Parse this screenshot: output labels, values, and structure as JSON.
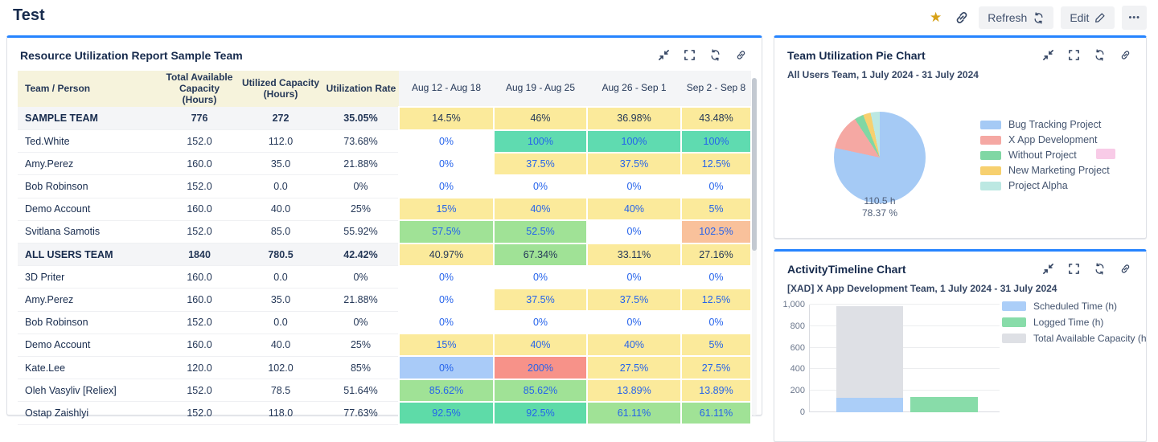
{
  "page": {
    "title": "Test"
  },
  "icons": {
    "star": "★",
    "more": "•••"
  },
  "toolbar": {
    "refresh_label": "Refresh",
    "edit_label": "Edit"
  },
  "colors": {
    "accent_blue_top_border": "#2684FF",
    "link_text": "#2563EB",
    "star_gold": "#D7A117",
    "cell": {
      "yellow": "#FBEA9B",
      "teal": "#5FDBB0",
      "teal2": "#5EDBA8",
      "green": "#A0E296",
      "orange": "#F9C19B",
      "red": "#F79289",
      "blue": "#A9CBF8"
    }
  },
  "left_panel": {
    "title": "Resource Utilization Report Sample Team",
    "table": {
      "columns": [
        "Team / Person",
        "Total Available Capacity (Hours)",
        "Utilized Capacity (Hours)",
        "Utilization Rate",
        "Aug 12 - Aug 18",
        "Aug 19 - Aug 25",
        "Aug 26 - Sep 1",
        "Sep 2 - Sep 8"
      ],
      "rows": [
        {
          "name": "SAMPLE TEAM",
          "group": true,
          "total": "776",
          "utilized": "272",
          "rate": "35.05%",
          "weeks": [
            {
              "v": "14.5%",
              "c": "yellow"
            },
            {
              "v": "46%",
              "c": "yellow"
            },
            {
              "v": "36.98%",
              "c": "yellow"
            },
            {
              "v": "43.48%",
              "c": "yellow"
            }
          ]
        },
        {
          "name": "Ted.White",
          "total": "152.0",
          "utilized": "112.0",
          "rate": "73.68%",
          "weeks": [
            {
              "v": "0%"
            },
            {
              "v": "100%",
              "c": "teal"
            },
            {
              "v": "100%",
              "c": "teal"
            },
            {
              "v": "100%",
              "c": "teal"
            }
          ]
        },
        {
          "name": "Amy.Perez",
          "total": "160.0",
          "utilized": "35.0",
          "rate": "21.88%",
          "weeks": [
            {
              "v": "0%"
            },
            {
              "v": "37.5%",
              "c": "yellow"
            },
            {
              "v": "37.5%",
              "c": "yellow"
            },
            {
              "v": "12.5%",
              "c": "yellow"
            }
          ]
        },
        {
          "name": "Bob Robinson",
          "total": "152.0",
          "utilized": "0.0",
          "rate": "0%",
          "weeks": [
            {
              "v": "0%"
            },
            {
              "v": "0%"
            },
            {
              "v": "0%"
            },
            {
              "v": "0%"
            }
          ]
        },
        {
          "name": "Demo Account",
          "total": "160.0",
          "utilized": "40.0",
          "rate": "25%",
          "weeks": [
            {
              "v": "15%",
              "c": "yellow"
            },
            {
              "v": "40%",
              "c": "yellow"
            },
            {
              "v": "40%",
              "c": "yellow"
            },
            {
              "v": "5%",
              "c": "yellow"
            }
          ]
        },
        {
          "name": "Svitlana Samotis",
          "total": "152.0",
          "utilized": "85.0",
          "rate": "55.92%",
          "weeks": [
            {
              "v": "57.5%",
              "c": "green"
            },
            {
              "v": "52.5%",
              "c": "green"
            },
            {
              "v": "0%"
            },
            {
              "v": "102.5%",
              "c": "orange"
            }
          ]
        },
        {
          "name": "ALL USERS TEAM",
          "group": true,
          "total": "1840",
          "utilized": "780.5",
          "rate": "42.42%",
          "weeks": [
            {
              "v": "40.97%",
              "c": "yellow"
            },
            {
              "v": "67.34%",
              "c": "green"
            },
            {
              "v": "33.11%",
              "c": "yellow"
            },
            {
              "v": "27.16%",
              "c": "yellow"
            }
          ]
        },
        {
          "name": "3D Priter",
          "total": "160.0",
          "utilized": "0.0",
          "rate": "0%",
          "weeks": [
            {
              "v": "0%"
            },
            {
              "v": "0%"
            },
            {
              "v": "0%"
            },
            {
              "v": "0%"
            }
          ]
        },
        {
          "name": "Amy.Perez",
          "total": "160.0",
          "utilized": "35.0",
          "rate": "21.88%",
          "weeks": [
            {
              "v": "0%"
            },
            {
              "v": "37.5%",
              "c": "yellow"
            },
            {
              "v": "37.5%",
              "c": "yellow"
            },
            {
              "v": "12.5%",
              "c": "yellow"
            }
          ]
        },
        {
          "name": "Bob Robinson",
          "total": "152.0",
          "utilized": "0.0",
          "rate": "0%",
          "weeks": [
            {
              "v": "0%"
            },
            {
              "v": "0%"
            },
            {
              "v": "0%"
            },
            {
              "v": "0%"
            }
          ]
        },
        {
          "name": "Demo Account",
          "total": "160.0",
          "utilized": "40.0",
          "rate": "25%",
          "weeks": [
            {
              "v": "15%",
              "c": "yellow"
            },
            {
              "v": "40%",
              "c": "yellow"
            },
            {
              "v": "40%",
              "c": "yellow"
            },
            {
              "v": "5%",
              "c": "yellow"
            }
          ]
        },
        {
          "name": "Kate.Lee",
          "total": "120.0",
          "utilized": "102.0",
          "rate": "85%",
          "weeks": [
            {
              "v": "0%",
              "c": "blue"
            },
            {
              "v": "200%",
              "c": "red"
            },
            {
              "v": "27.5%",
              "c": "yellow"
            },
            {
              "v": "27.5%",
              "c": "yellow"
            }
          ]
        },
        {
          "name": "Oleh Vasyliv [Reliex]",
          "total": "152.0",
          "utilized": "78.5",
          "rate": "51.64%",
          "weeks": [
            {
              "v": "85.62%",
              "c": "green"
            },
            {
              "v": "85.62%",
              "c": "green"
            },
            {
              "v": "13.89%",
              "c": "yellow"
            },
            {
              "v": "13.89%",
              "c": "yellow"
            }
          ]
        },
        {
          "name": "Ostap Zaishlyi",
          "total": "152.0",
          "utilized": "118.0",
          "rate": "77.63%",
          "weeks": [
            {
              "v": "92.5%",
              "c": "teal2"
            },
            {
              "v": "92.5%",
              "c": "teal2"
            },
            {
              "v": "61.11%",
              "c": "green"
            },
            {
              "v": "61.11%",
              "c": "green"
            }
          ]
        }
      ]
    }
  },
  "pie_panel": {
    "title": "Team Utilization Pie Chart",
    "subtitle": "All Users Team, 1 July 2024 - 31 July 2024",
    "center_line1": "110.5 h",
    "center_line2": "78.37 %",
    "extra_pink_swatch_color": "#F8CBE7"
  },
  "timeline_panel": {
    "title": "ActivityTimeline Chart",
    "subtitle": "[XAD] X App Development Team, 1 July 2024 - 31 July 2024"
  },
  "chart_data": [
    {
      "type": "pie",
      "title": "Team Utilization Pie Chart",
      "subtitle": "All Users Team, 1 July 2024 - 31 July 2024",
      "slices": [
        {
          "label": "Bug Tracking Project",
          "pct": 78.37,
          "color": "#A5CAF5",
          "data_label": "110.5 h / 78.37 %"
        },
        {
          "label": "X App Development",
          "pct": 12.5,
          "color": "#F5A8A3"
        },
        {
          "label": "Without Project",
          "pct": 3.2,
          "color": "#80D7A4"
        },
        {
          "label": "New Marketing Project",
          "pct": 2.7,
          "color": "#F7D06F"
        },
        {
          "label": "Project Alpha",
          "pct": 3.23,
          "color": "#BCE8E2"
        }
      ],
      "legend_position": "right"
    },
    {
      "type": "bar",
      "title": "ActivityTimeline Chart",
      "subtitle": "[XAD] X App Development Team, 1 July 2024 - 31 July 2024",
      "ylim": [
        0,
        1000
      ],
      "y_ticks": [
        0,
        200,
        400,
        600,
        800,
        1000
      ],
      "y_tick_labels": [
        "0",
        "200",
        "400",
        "600",
        "800",
        "1,000"
      ],
      "grid": true,
      "legend_position": "right",
      "series": [
        {
          "name": "Scheduled Time (h)",
          "color": "#ABCEF8",
          "values": [
            135
          ]
        },
        {
          "name": "Logged Time (h)",
          "color": "#88DCA9",
          "values": [
            140
          ]
        },
        {
          "name": "Total Available Capacity (h)",
          "color": "#DEE0E5",
          "values": [
            985
          ]
        }
      ]
    }
  ]
}
